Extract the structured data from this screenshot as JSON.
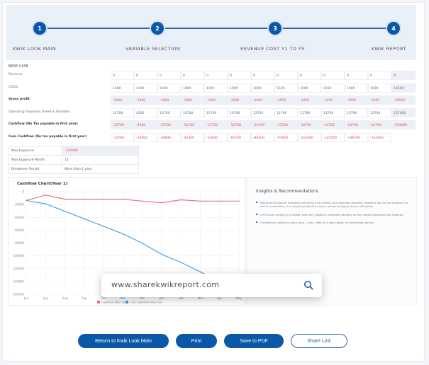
{
  "steps": [
    {
      "num": "1",
      "label": "KWIK LOOK MAIN"
    },
    {
      "num": "2",
      "label": "VARIABLE SELECTION"
    },
    {
      "num": "3",
      "label": "REVENUE COST Y1 TO Y5"
    },
    {
      "num": "4",
      "label": "KWIK REPORT"
    }
  ],
  "section": "BASE CASE",
  "rows": [
    {
      "label": "Revenue",
      "bold": false,
      "shade": false,
      "values": [
        "0",
        "0",
        "0",
        "0",
        "0",
        "0",
        "0",
        "0",
        "0",
        "0",
        "0",
        "0",
        "0"
      ]
    },
    {
      "label": "COGS",
      "bold": false,
      "shade": false,
      "values": [
        "1000",
        "1000",
        "1000",
        "1000",
        "1000",
        "1000",
        "1000",
        "5500",
        "1000",
        "1000",
        "1000",
        "1000",
        "16500"
      ]
    },
    {
      "label": "Gross profit",
      "bold": true,
      "shade": true,
      "values": [
        "-1000",
        "-1000",
        "-1000",
        "-1000",
        "-1000",
        "-1000",
        "-1000",
        "-5500",
        "-1000",
        "-1000",
        "-1000",
        "-1000",
        "-16500"
      ]
    },
    {
      "label": "Operating Expenses (Fixed & Variable)",
      "bold": false,
      "shade": false,
      "values": [
        "12700",
        "4200",
        "10700",
        "10700",
        "10700",
        "10700",
        "13700",
        "11700",
        "11700",
        "13700",
        "13700",
        "13700",
        "137900"
      ]
    },
    {
      "label": "Cashflow (No Tax payable in first year)",
      "bold": true,
      "shade": true,
      "values": [
        "-13700",
        "-5200",
        "-11700",
        "-11700",
        "-11700",
        "-11700",
        "-14700",
        "-17200",
        "-12700",
        "-14700",
        "-14700",
        "-14700",
        "-154400"
      ]
    },
    {
      "label": "Cum Cashflow (No tax payable in first year)",
      "bold": true,
      "shade": false,
      "values": [
        "-13700",
        "-18900",
        "-30600",
        "-42300",
        "-54000",
        "-65700",
        "-80400",
        "-97600",
        "-110300",
        "-125000",
        "-139700",
        "-154400"
      ]
    }
  ],
  "summary": [
    {
      "label": "Max Exposure",
      "value": "-154400"
    },
    {
      "label": "Max Exposure Month",
      "value": "12"
    },
    {
      "label": "Breakeven Period",
      "value": "More than 1 year"
    }
  ],
  "chart_data": {
    "type": "line",
    "title": "Cashflow Chart(Year 1)",
    "categories": [
      "Jun",
      "July",
      "Aug",
      "Sep",
      "Oct",
      "Nov",
      "Dec",
      "Jan",
      "Feb",
      "Mar",
      "Apr",
      "May"
    ],
    "series": [
      {
        "name": "Cashflow After Tax",
        "color": "#e8718a",
        "values": [
          -13700,
          -5200,
          -11700,
          -11700,
          -11700,
          -11700,
          -14700,
          -17200,
          -12700,
          -14700,
          -14700,
          -14700
        ]
      },
      {
        "name": "Cum Cashflow After Tax",
        "color": "#4aa3df",
        "values": [
          -13700,
          -18900,
          -30600,
          -42300,
          -54000,
          -65700,
          -80400,
          -97600,
          -110300,
          -125000,
          -139700,
          -154400
        ]
      }
    ],
    "ylim": [
      -160000,
      0
    ],
    "yticks": [
      "0",
      "-20000",
      "-40000",
      "-60000",
      "-80000",
      "-100000",
      "-120000",
      "-140000",
      "-160000"
    ],
    "grid": true,
    "legend": "bottom"
  },
  "insights": {
    "title": "Insights & Recommendations",
    "items": [
      "Maximum Exposure indicates the amount of funding your business required. However due to the existence of risk & uncertainty, it is usually prudent to ensure access to higher levels of funding.",
      "If Pre-look funding is included, then any negative cashflow indicates further capital injections are required",
      "If breakeven period is more than 1 year, refer to 5 year report for breakdown period."
    ]
  },
  "search": {
    "value": "www.sharekwikreport.com",
    "icon": "search-icon"
  },
  "buttons": {
    "return": "Return to Kwik Look Main",
    "print": "Print",
    "pdf": "Save to PDF",
    "share": "Share Link"
  }
}
